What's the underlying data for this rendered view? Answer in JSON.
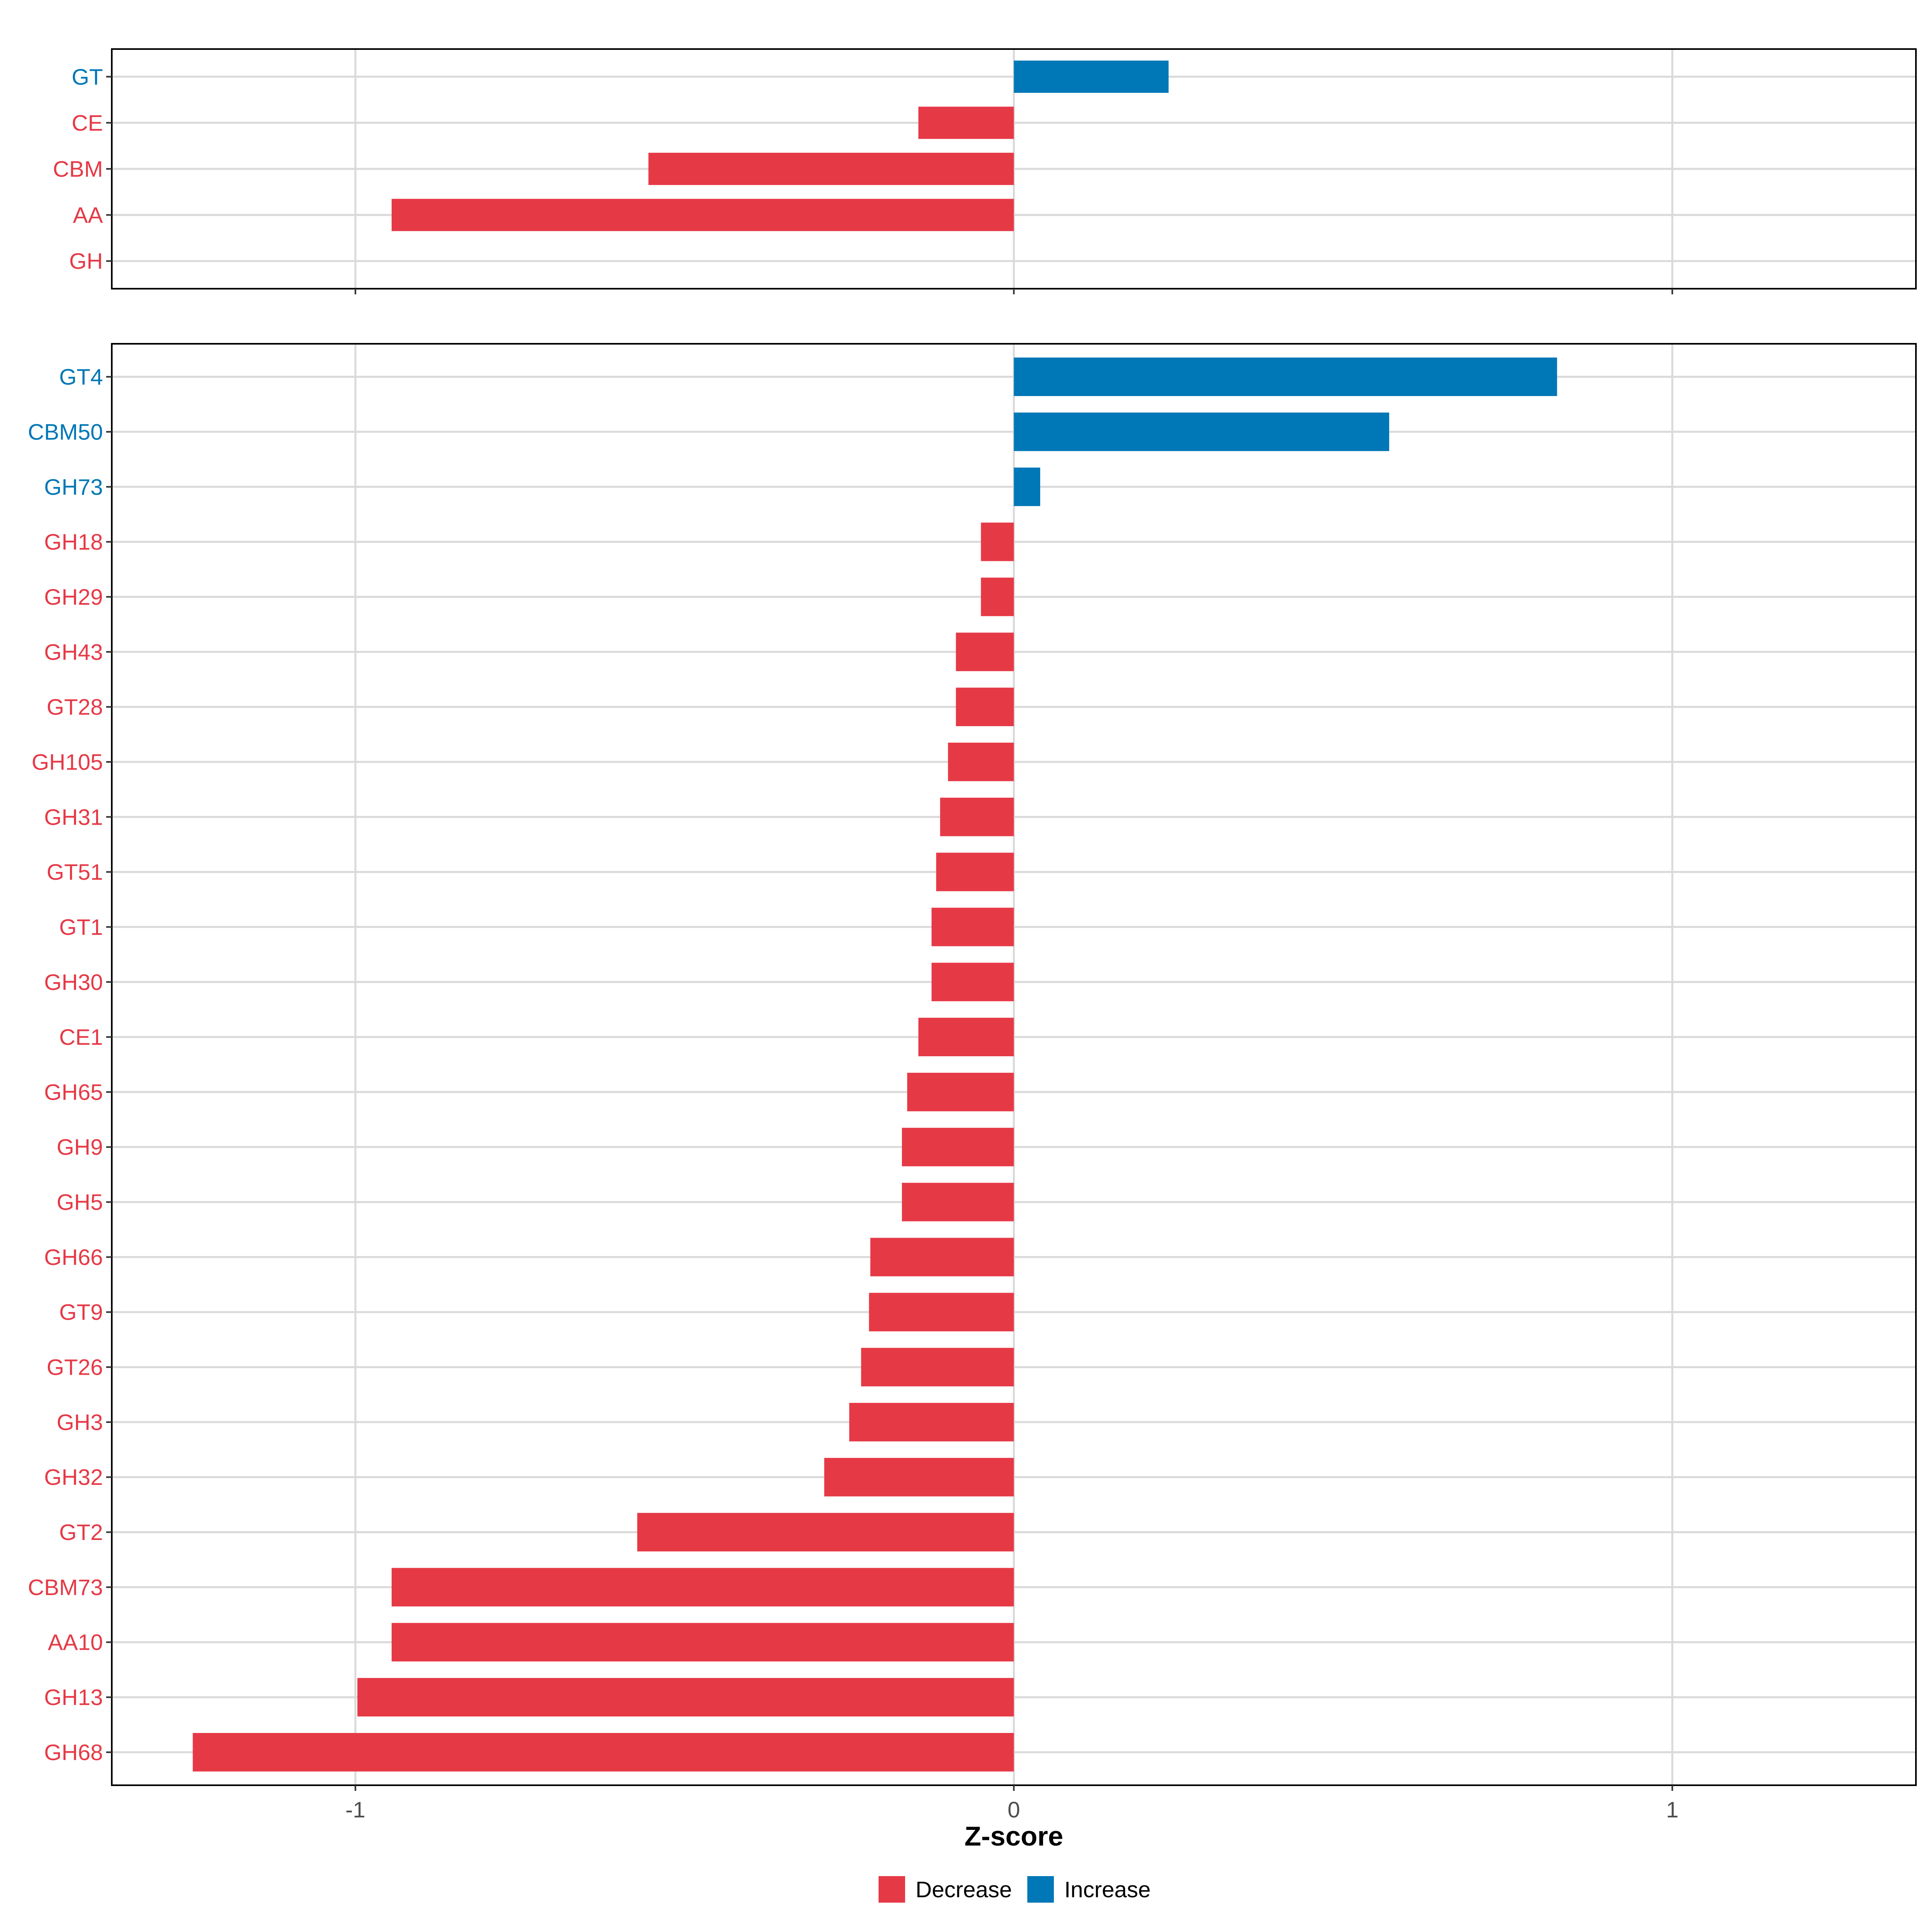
{
  "chart_data": [
    {
      "type": "bar",
      "orientation": "horizontal",
      "panel": "top",
      "categories": [
        "GT",
        "CE",
        "CBM",
        "AA",
        "GH"
      ],
      "values": [
        0.235,
        -0.145,
        -0.555,
        -0.945,
        0.0
      ],
      "direction": [
        "Increase",
        "Decrease",
        "Decrease",
        "Decrease",
        "Decrease"
      ],
      "xlim": [
        -1.37,
        1.37
      ],
      "xticks": [
        -1,
        0,
        1
      ],
      "grid": true
    },
    {
      "type": "bar",
      "orientation": "horizontal",
      "panel": "bottom",
      "categories": [
        "GT4",
        "CBM50",
        "GH73",
        "GH18",
        "GH29",
        "GH43",
        "GT28",
        "GH105",
        "GH31",
        "GT51",
        "GT1",
        "GH30",
        "CE1",
        "GH65",
        "GH9",
        "GH5",
        "GH66",
        "GT9",
        "GT26",
        "GH3",
        "GH32",
        "GT2",
        "CBM73",
        "AA10",
        "GH13",
        "GH68"
      ],
      "values": [
        0.825,
        0.57,
        0.04,
        -0.05,
        -0.05,
        -0.088,
        -0.088,
        -0.1,
        -0.112,
        -0.118,
        -0.125,
        -0.125,
        -0.145,
        -0.162,
        -0.17,
        -0.17,
        -0.218,
        -0.22,
        -0.232,
        -0.25,
        -0.288,
        -0.572,
        -0.945,
        -0.945,
        -0.997,
        -1.247
      ],
      "direction": [
        "Increase",
        "Increase",
        "Increase",
        "Decrease",
        "Decrease",
        "Decrease",
        "Decrease",
        "Decrease",
        "Decrease",
        "Decrease",
        "Decrease",
        "Decrease",
        "Decrease",
        "Decrease",
        "Decrease",
        "Decrease",
        "Decrease",
        "Decrease",
        "Decrease",
        "Decrease",
        "Decrease",
        "Decrease",
        "Decrease",
        "Decrease",
        "Decrease",
        "Decrease"
      ],
      "xlim": [
        -1.37,
        1.37
      ],
      "xticks": [
        -1,
        0,
        1
      ],
      "xtick_labels": [
        "-1",
        "0",
        "1"
      ],
      "xlabel": "Z-score",
      "grid": true
    }
  ],
  "legend": {
    "placement": "bottom-center",
    "items": [
      {
        "label": "Decrease",
        "color": "#E63946"
      },
      {
        "label": "Increase",
        "color": "#0077B6"
      }
    ]
  },
  "colors": {
    "Decrease": "#E63946",
    "Increase": "#0077B6",
    "grid": "#DADADA",
    "panel_border": "#000000",
    "tick_text": "#4D4D4D"
  }
}
